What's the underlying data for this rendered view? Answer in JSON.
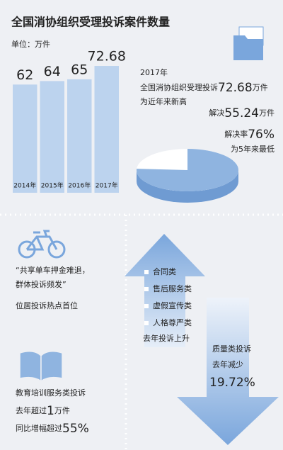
{
  "title": "全国消协组织受理投诉案件数量",
  "chart_data": [
    {
      "type": "bar",
      "unit_label": "单位：万件",
      "categories": [
        "2014年",
        "2015年",
        "2016年",
        "2017年"
      ],
      "values": [
        62,
        64,
        65,
        72.68
      ],
      "color": "#bcd3ee",
      "ylim": [
        0,
        80
      ]
    },
    {
      "type": "pie",
      "values": [
        76
      ],
      "value_labels": [
        "76%"
      ],
      "color": "#8fb4e0"
    }
  ],
  "summary": {
    "year": "2017年",
    "received_prefix": "全国消协组织受理投诉",
    "unit": "万件",
    "received_note": "为近年来新高",
    "resolved_label": "解决",
    "resolved_value": "55.24",
    "rate_label": "解决率",
    "rate_note": "为5年来最低"
  },
  "bike": [
    "“共享单车押金难退，",
    "群体投诉频发”",
    "位居投诉热点首位"
  ],
  "rising": {
    "items": [
      "合同类",
      "售后服务类",
      "虚假宣传类",
      "人格尊严类"
    ],
    "caption": "去年投诉上升"
  },
  "quality": {
    "label": "质量类投诉",
    "change": "去年减少",
    "value": "19.72%"
  },
  "education": {
    "label": "教育培训服务类投诉",
    "line2_prefix": "去年超过",
    "line2_value": "1",
    "line2_unit": "万件",
    "line3_prefix": "同比增幅超过",
    "line3_value": "55%"
  }
}
